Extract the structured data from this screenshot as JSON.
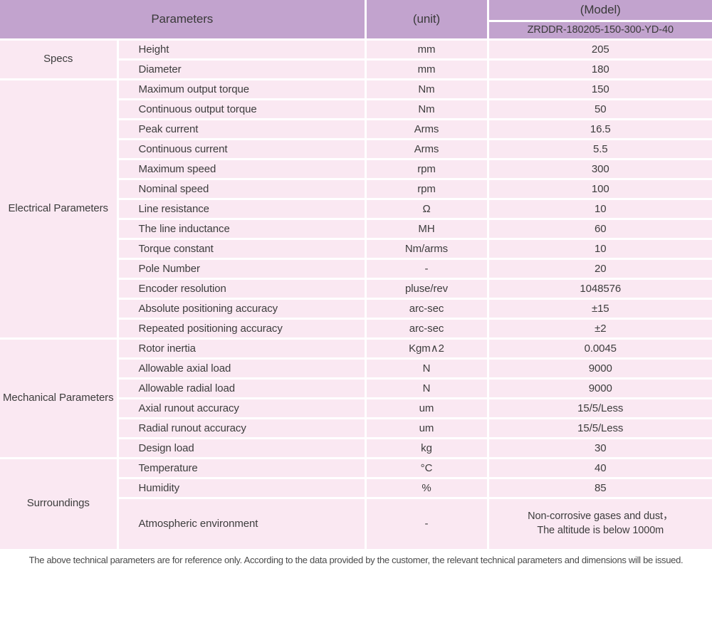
{
  "header": {
    "parameters_label": "Parameters",
    "unit_label": "(unit)",
    "model_label": "(Model)",
    "model_value": "ZRDDR-180205-150-300-YD-40"
  },
  "sections": [
    {
      "group": "Specs",
      "rows": [
        {
          "name": "Height",
          "unit": "mm",
          "value": "205"
        },
        {
          "name": "Diameter",
          "unit": "mm",
          "value": "180"
        }
      ]
    },
    {
      "group": "Electrical Parameters",
      "rows": [
        {
          "name": "Maximum output torque",
          "unit": "Nm",
          "value": "150"
        },
        {
          "name": "Continuous output torque",
          "unit": "Nm",
          "value": "50"
        },
        {
          "name": "Peak current",
          "unit": "Arms",
          "value": "16.5"
        },
        {
          "name": "Continuous current",
          "unit": "Arms",
          "value": "5.5"
        },
        {
          "name": "Maximum speed",
          "unit": "rpm",
          "value": "300"
        },
        {
          "name": "Nominal speed",
          "unit": "rpm",
          "value": "100"
        },
        {
          "name": "Line resistance",
          "unit": "Ω",
          "value": "10"
        },
        {
          "name": "The line inductance",
          "unit": "MH",
          "value": "60"
        },
        {
          "name": "Torque constant",
          "unit": "Nm/arms",
          "value": "10"
        },
        {
          "name": "Pole Number",
          "unit": "-",
          "value": "20"
        },
        {
          "name": "Encoder resolution",
          "unit": "pluse/rev",
          "value": "1048576"
        },
        {
          "name": "Absolute positioning accuracy",
          "unit": "arc-sec",
          "value": "±15"
        },
        {
          "name": "Repeated positioning accuracy",
          "unit": "arc-sec",
          "value": "±2"
        }
      ]
    },
    {
      "group": "Mechanical Parameters",
      "rows": [
        {
          "name": "Rotor inertia",
          "unit": "Kgm∧2",
          "value": "0.0045"
        },
        {
          "name": "Allowable axial load",
          "unit": "N",
          "value": "9000"
        },
        {
          "name": "Allowable radial load",
          "unit": "N",
          "value": "9000"
        },
        {
          "name": "Axial runout accuracy",
          "unit": "um",
          "value": "15/5/Less"
        },
        {
          "name": "Radial runout accuracy",
          "unit": "um",
          "value": "15/5/Less"
        },
        {
          "name": "Design load",
          "unit": "kg",
          "value": "30"
        }
      ]
    },
    {
      "group": "Surroundings",
      "rows": [
        {
          "name": "Temperature",
          "unit": "°C",
          "value": "40"
        },
        {
          "name": "Humidity",
          "unit": "%",
          "value": "85"
        },
        {
          "name": "Atmospheric environment",
          "unit": "-",
          "value_line1": "Non-corrosive gases and dust，",
          "value_line2": "The altitude is below 1000m"
        }
      ]
    }
  ],
  "footer": {
    "note": "The above technical parameters are for reference only. According to the data provided by the customer, the relevant technical parameters and dimensions will be issued."
  },
  "colors": {
    "header_purple": "#c2a3ce",
    "row_pink": "#fae8f2",
    "divider_white": "#ffffff",
    "text": "#3d3d3d"
  }
}
